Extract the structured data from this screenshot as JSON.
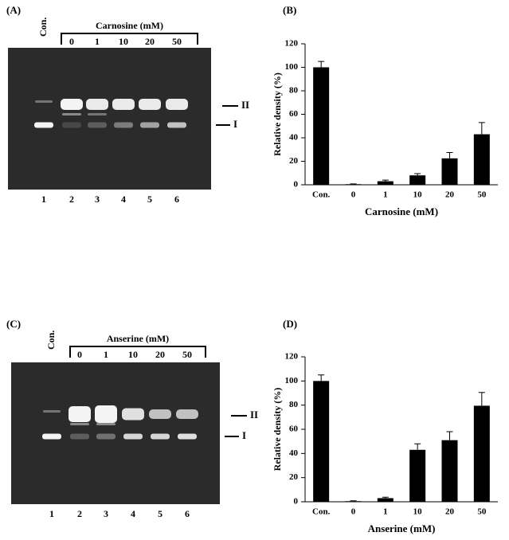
{
  "gels": [
    {
      "label": "(A)",
      "control": "Con.",
      "treatment": "Carnosine (mM)",
      "concentrations": [
        "0",
        "1",
        "10",
        "20",
        "50"
      ],
      "lanes": [
        "1",
        "2",
        "3",
        "4",
        "5",
        "6"
      ],
      "bands": [
        "II",
        "I"
      ]
    },
    {
      "label": "(C)",
      "control": "Con.",
      "treatment": "Anserine (mM)",
      "concentrations": [
        "0",
        "1",
        "10",
        "20",
        "50"
      ],
      "lanes": [
        "1",
        "2",
        "3",
        "4",
        "5",
        "6"
      ],
      "bands": [
        "II",
        "I"
      ]
    }
  ],
  "chart_data": [
    {
      "type": "bar",
      "title": "(B)",
      "x_label": "Carnosine (mM)",
      "y_label": "Relative density (%)",
      "categories": [
        "Con.",
        "0",
        "1",
        "10",
        "20",
        "50"
      ],
      "values": [
        100,
        0.5,
        3,
        8,
        22.5,
        43
      ],
      "errors": [
        5,
        0.3,
        1,
        1.5,
        5,
        10
      ],
      "color": "#000000",
      "ylim": [
        0,
        120
      ],
      "yticks": [
        0,
        20,
        40,
        60,
        80,
        100,
        120
      ]
    },
    {
      "type": "bar",
      "title": "(D)",
      "x_label": "Anserine (mM)",
      "y_label": "Relative density (%)",
      "categories": [
        "Con.",
        "0",
        "1",
        "10",
        "20",
        "50"
      ],
      "values": [
        100,
        0.5,
        3,
        43,
        51,
        79.5
      ],
      "errors": [
        5,
        0.3,
        0.8,
        5,
        7,
        11
      ],
      "color": "#000000",
      "ylim": [
        0,
        120
      ],
      "yticks": [
        0,
        20,
        40,
        60,
        80,
        100,
        120
      ]
    }
  ]
}
